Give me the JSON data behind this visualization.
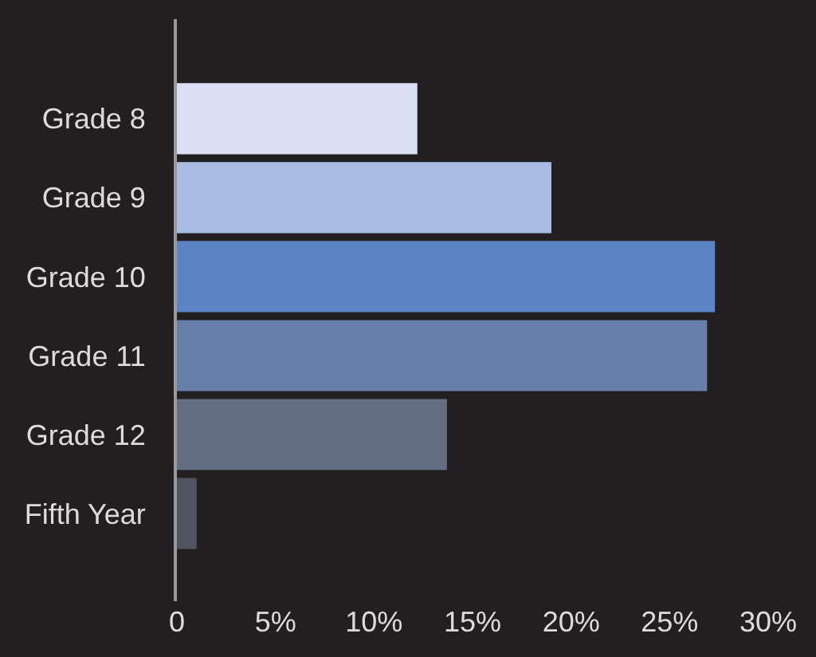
{
  "chart_data": {
    "type": "bar",
    "orientation": "horizontal",
    "categories": [
      "Grade 8",
      "Grade 9",
      "Grade 10",
      "Grade 11",
      "Grade 12",
      "Fifth Year"
    ],
    "values": [
      12.2,
      19.0,
      27.3,
      26.9,
      13.7,
      1.0
    ],
    "colors": [
      "#dae0f2",
      "#a8bbe0",
      "#5b84c5",
      "#677fa9",
      "#636e85",
      "#50545f"
    ],
    "xlim": [
      0,
      30
    ],
    "xticks": [
      0,
      {
        "value": 5,
        "label": "5%"
      },
      {
        "value": 10,
        "label": "10%"
      },
      {
        "value": 15,
        "label": "15%"
      },
      {
        "value": 20,
        "label": "20%"
      },
      {
        "value": 25,
        "label": "25%"
      },
      {
        "value": 30,
        "label": "30%"
      }
    ],
    "grid": false
  }
}
